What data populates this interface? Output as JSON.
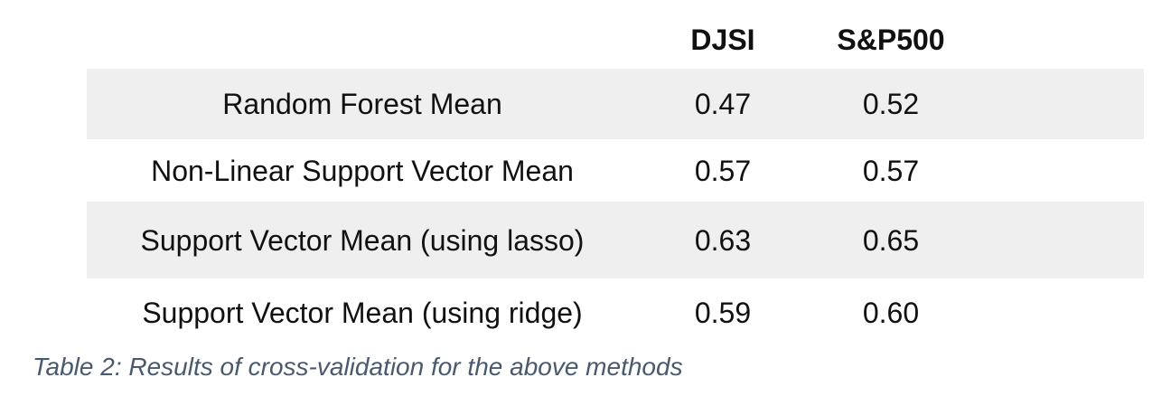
{
  "table": {
    "columns": [
      "DJSI",
      "S&P500"
    ],
    "rows": [
      {
        "method": "Random Forest Mean",
        "djsi": "0.47",
        "sp500": "0.52"
      },
      {
        "method": "Non-Linear Support Vector Mean",
        "djsi": "0.57",
        "sp500": "0.57"
      },
      {
        "method": "Support Vector Mean (using lasso)",
        "djsi": "0.63",
        "sp500": "0.65"
      },
      {
        "method": "Support Vector Mean (using ridge)",
        "djsi": "0.59",
        "sp500": "0.60"
      }
    ]
  },
  "caption": "Table 2: Results of cross-validation for the above methods",
  "colors": {
    "shaded_row": "#efefef",
    "caption_text": "#4a5a6e"
  }
}
